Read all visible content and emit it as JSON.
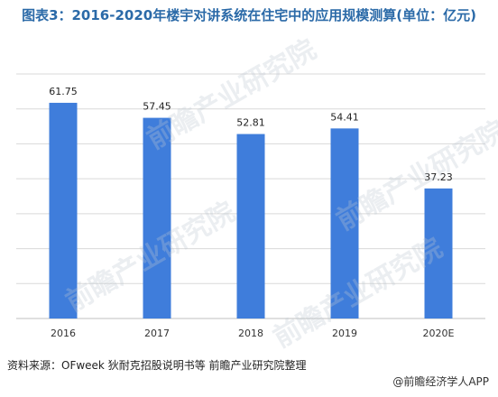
{
  "title": "图表3：2016-2020年楼宇对讲系统在住宅中的应用规模测算(单位：亿元)",
  "watermark_text": "前瞻产业研究院",
  "source": "资料来源：OFweek 狄耐克招股说明书等 前瞻产业研究院整理",
  "brand": "@前瞻经济学人APP",
  "bar_color": "#3f7ddb",
  "chart_data": {
    "type": "bar",
    "title": "图表3：2016-2020年楼宇对讲系统在住宅中的应用规模测算(单位：亿元)",
    "categories": [
      "2016",
      "2017",
      "2018",
      "2019",
      "2020E"
    ],
    "values": [
      61.75,
      57.45,
      52.81,
      54.41,
      37.23
    ],
    "data_labels": [
      "61.75",
      "57.45",
      "52.81",
      "54.41",
      "37.23"
    ],
    "xlabel": "",
    "ylabel": "",
    "ylim": [
      0,
      70
    ],
    "grid": true,
    "legend": "none"
  }
}
